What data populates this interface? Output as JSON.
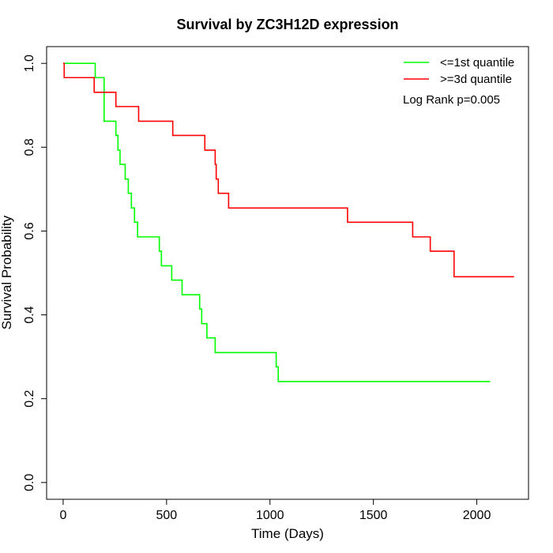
{
  "chart_data": {
    "type": "line",
    "title": "Survival by ZC3H12D expression",
    "xlabel": "Time (Days)",
    "ylabel": "Survival Probability",
    "xlim": [
      -80,
      2250
    ],
    "ylim": [
      -0.04,
      1.04
    ],
    "x_ticks": [
      0,
      500,
      1000,
      1500,
      2000
    ],
    "x_tick_labels": [
      "0",
      "500",
      "1000",
      "1500",
      "2000"
    ],
    "y_ticks": [
      0.0,
      0.2,
      0.4,
      0.6,
      0.8,
      1.0
    ],
    "y_tick_labels": [
      "0.0",
      "0.2",
      "0.4",
      "0.6",
      "0.8",
      "1.0"
    ],
    "grid": false,
    "legend_position": "top-right",
    "annotation": "Log Rank p=0.005",
    "series": [
      {
        "name": "<=1st quantile",
        "color": "#00ff00",
        "step": true,
        "x": [
          0,
          155,
          198,
          255,
          265,
          275,
          300,
          315,
          330,
          345,
          360,
          390,
          465,
          475,
          525,
          575,
          660,
          670,
          695,
          735,
          1030,
          1040,
          2065
        ],
        "y": [
          1.0,
          0.966,
          0.862,
          0.828,
          0.793,
          0.759,
          0.724,
          0.69,
          0.655,
          0.621,
          0.586,
          0.586,
          0.552,
          0.517,
          0.483,
          0.448,
          0.414,
          0.379,
          0.345,
          0.31,
          0.276,
          0.241,
          0.241
        ]
      },
      {
        "name": ">=3d quantile",
        "color": "#ff0000",
        "step": true,
        "x": [
          0,
          5,
          150,
          255,
          365,
          530,
          685,
          735,
          740,
          750,
          760,
          800,
          1375,
          1690,
          1775,
          1890,
          2180
        ],
        "y": [
          1.0,
          0.966,
          0.931,
          0.897,
          0.862,
          0.828,
          0.793,
          0.759,
          0.724,
          0.69,
          0.69,
          0.655,
          0.621,
          0.586,
          0.552,
          0.491,
          0.491
        ]
      }
    ]
  }
}
